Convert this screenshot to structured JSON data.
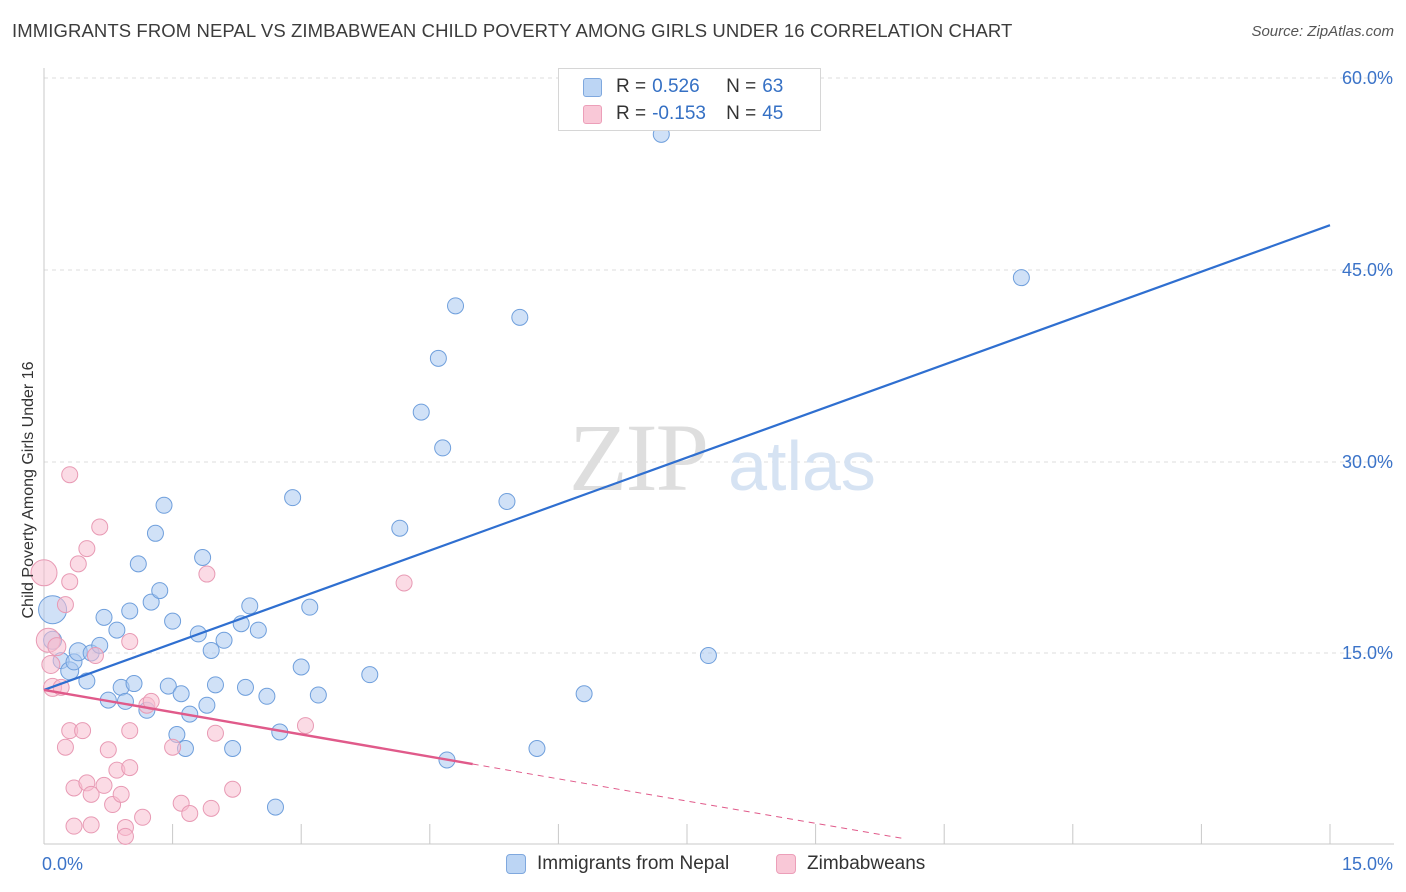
{
  "header": {
    "title": "IMMIGRANTS FROM NEPAL VS ZIMBABWEAN CHILD POVERTY AMONG GIRLS UNDER 16 CORRELATION CHART",
    "source": "Source: ZipAtlas.com"
  },
  "watermark": {
    "zip": "ZIP",
    "atlas": "atlas"
  },
  "legend": {
    "rows": [
      {
        "r_label": "R =",
        "r_value": "0.526",
        "n_label": "N =",
        "n_value": "63"
      },
      {
        "r_label": "R =",
        "r_value": "-0.153",
        "n_label": "N =",
        "n_value": "45"
      }
    ]
  },
  "chart_data": {
    "type": "scatter",
    "ylabel": "Child Poverty Among Girls Under 16",
    "xlim": [
      0,
      15
    ],
    "ylim": [
      0,
      60
    ],
    "x_tick_labels": [
      {
        "value": 0,
        "label": "0.0%"
      },
      {
        "value": 15,
        "label": "15.0%"
      }
    ],
    "y_tick_labels": [
      {
        "value": 15,
        "label": "15.0%"
      },
      {
        "value": 30,
        "label": "30.0%"
      },
      {
        "value": 45,
        "label": "45.0%"
      },
      {
        "value": 60,
        "label": "60.0%"
      }
    ],
    "grid": true,
    "legend_position": "bottom",
    "series": [
      {
        "name": "Immigrants from Nepal",
        "color": "#a9c8f0",
        "stroke": "#6f9fdc",
        "line_color": "#2f6fd0",
        "trend": {
          "x": [
            0,
            15
          ],
          "y": [
            12.1,
            48.5
          ],
          "dashed_from": null
        },
        "points": [
          [
            0.1,
            18.4,
            14
          ],
          [
            0.1,
            16.0,
            9
          ],
          [
            0.2,
            14.4,
            8
          ],
          [
            0.3,
            13.6,
            9
          ],
          [
            0.35,
            14.3,
            8
          ],
          [
            0.4,
            15.1,
            9
          ],
          [
            0.5,
            12.8,
            8
          ],
          [
            0.55,
            15.0,
            8
          ],
          [
            0.65,
            15.6,
            8
          ],
          [
            0.7,
            17.8,
            8
          ],
          [
            0.75,
            11.3,
            8
          ],
          [
            0.85,
            16.8,
            8
          ],
          [
            0.9,
            12.3,
            8
          ],
          [
            0.95,
            11.2,
            8
          ],
          [
            1.0,
            18.3,
            8
          ],
          [
            1.05,
            12.6,
            8
          ],
          [
            1.1,
            22.0,
            8
          ],
          [
            1.2,
            10.5,
            8
          ],
          [
            1.25,
            19.0,
            8
          ],
          [
            1.3,
            24.4,
            8
          ],
          [
            1.35,
            19.9,
            8
          ],
          [
            1.4,
            26.6,
            8
          ],
          [
            1.45,
            12.4,
            8
          ],
          [
            1.5,
            17.5,
            8
          ],
          [
            1.55,
            8.6,
            8
          ],
          [
            1.6,
            11.8,
            8
          ],
          [
            1.65,
            7.5,
            8
          ],
          [
            1.7,
            10.2,
            8
          ],
          [
            1.8,
            16.5,
            8
          ],
          [
            1.85,
            22.5,
            8
          ],
          [
            1.9,
            10.9,
            8
          ],
          [
            1.95,
            15.2,
            8
          ],
          [
            2.0,
            12.5,
            8
          ],
          [
            2.1,
            16.0,
            8
          ],
          [
            2.2,
            7.5,
            8
          ],
          [
            2.3,
            17.3,
            8
          ],
          [
            2.35,
            12.3,
            8
          ],
          [
            2.4,
            18.7,
            8
          ],
          [
            2.5,
            16.8,
            8
          ],
          [
            2.6,
            11.6,
            8
          ],
          [
            2.7,
            2.9,
            8
          ],
          [
            2.75,
            8.8,
            8
          ],
          [
            2.9,
            27.2,
            8
          ],
          [
            3.0,
            13.9,
            8
          ],
          [
            3.1,
            18.6,
            8
          ],
          [
            3.2,
            11.7,
            8
          ],
          [
            3.8,
            13.3,
            8
          ],
          [
            4.15,
            24.8,
            8
          ],
          [
            4.4,
            33.9,
            8
          ],
          [
            4.6,
            38.1,
            8
          ],
          [
            4.65,
            31.1,
            8
          ],
          [
            4.7,
            6.6,
            8
          ],
          [
            4.8,
            42.2,
            8
          ],
          [
            5.4,
            26.9,
            8
          ],
          [
            5.55,
            41.3,
            8
          ],
          [
            5.75,
            7.5,
            8
          ],
          [
            6.3,
            11.8,
            8
          ],
          [
            7.2,
            55.6,
            8
          ],
          [
            7.75,
            14.8,
            8
          ],
          [
            11.4,
            44.4,
            8
          ]
        ]
      },
      {
        "name": "Zimbabweans",
        "color": "#f7bdd0",
        "stroke": "#e89ab4",
        "line_color": "#e05a8a",
        "trend": {
          "x": [
            0,
            10.05
          ],
          "y": [
            12.1,
            0.4
          ],
          "dashed_from": 5
        },
        "points": [
          [
            0.0,
            21.3,
            13
          ],
          [
            0.05,
            16.0,
            12
          ],
          [
            0.08,
            14.1,
            9
          ],
          [
            0.1,
            12.3,
            9
          ],
          [
            0.15,
            15.5,
            9
          ],
          [
            0.2,
            12.3,
            8
          ],
          [
            0.25,
            18.8,
            8
          ],
          [
            0.25,
            7.6,
            8
          ],
          [
            0.3,
            29.0,
            8
          ],
          [
            0.3,
            20.6,
            8
          ],
          [
            0.3,
            8.9,
            8
          ],
          [
            0.35,
            4.4,
            8
          ],
          [
            0.35,
            1.4,
            8
          ],
          [
            0.4,
            22.0,
            8
          ],
          [
            0.45,
            8.9,
            8
          ],
          [
            0.5,
            23.2,
            8
          ],
          [
            0.5,
            4.8,
            8
          ],
          [
            0.55,
            3.9,
            8
          ],
          [
            0.55,
            1.5,
            8
          ],
          [
            0.6,
            14.8,
            8
          ],
          [
            0.65,
            24.9,
            8
          ],
          [
            0.7,
            4.6,
            8
          ],
          [
            0.75,
            7.4,
            8
          ],
          [
            0.8,
            3.1,
            8
          ],
          [
            0.85,
            5.8,
            8
          ],
          [
            0.9,
            3.9,
            8
          ],
          [
            0.95,
            1.3,
            8
          ],
          [
            0.95,
            0.6,
            8
          ],
          [
            1.0,
            15.9,
            8
          ],
          [
            1.0,
            8.9,
            8
          ],
          [
            1.0,
            6.0,
            8
          ],
          [
            1.15,
            2.1,
            8
          ],
          [
            1.2,
            10.9,
            8
          ],
          [
            1.25,
            11.2,
            8
          ],
          [
            1.5,
            7.6,
            8
          ],
          [
            1.6,
            3.2,
            8
          ],
          [
            1.7,
            2.4,
            8
          ],
          [
            1.9,
            21.2,
            8
          ],
          [
            1.95,
            2.8,
            8
          ],
          [
            2.0,
            8.7,
            8
          ],
          [
            2.2,
            4.3,
            8
          ],
          [
            3.05,
            9.3,
            8
          ],
          [
            4.2,
            20.5,
            8
          ]
        ]
      }
    ]
  }
}
